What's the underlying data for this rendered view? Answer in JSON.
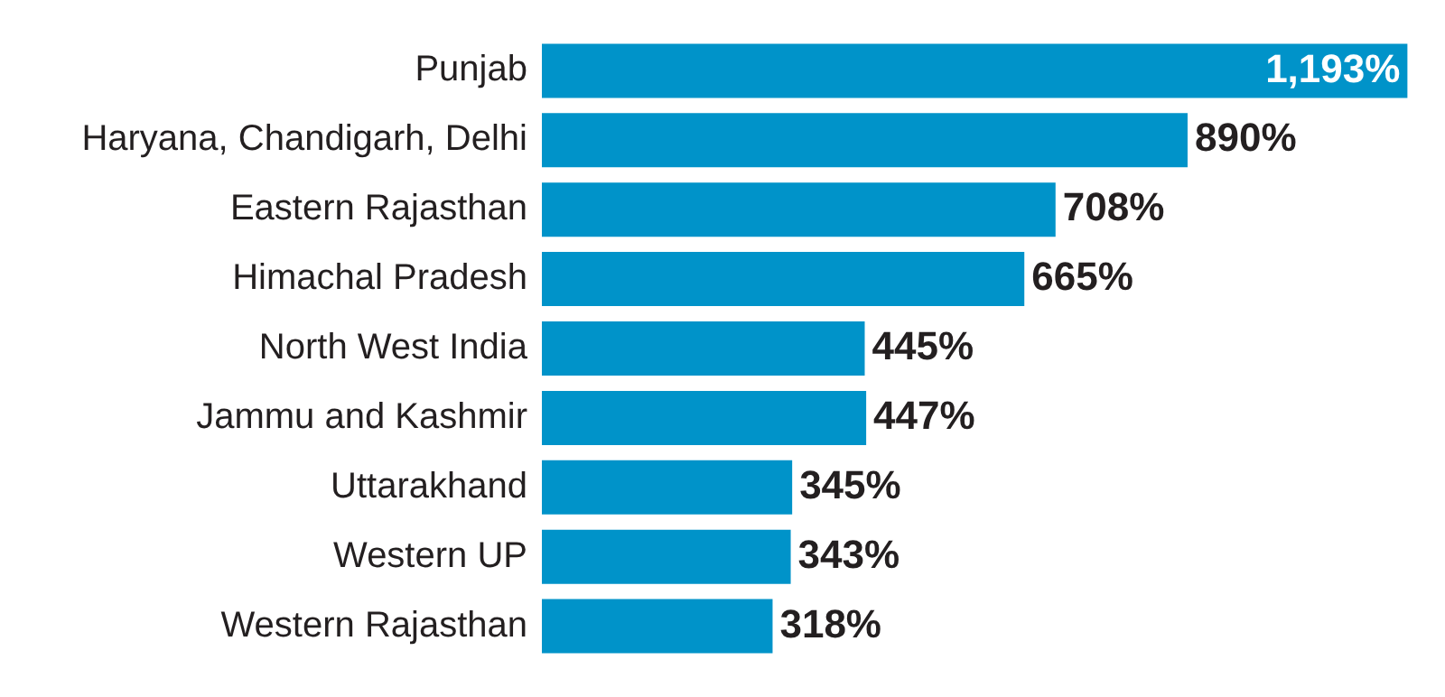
{
  "chart_data": {
    "type": "bar",
    "orientation": "horizontal",
    "categories": [
      "Punjab",
      "Haryana, Chandigarh, Delhi",
      "Eastern Rajasthan",
      "Himachal Pradesh",
      "North West India",
      "Jammu and Kashmir",
      "Uttarakhand",
      "Western UP",
      "Western Rajasthan"
    ],
    "values": [
      1193,
      890,
      708,
      665,
      445,
      447,
      345,
      343,
      318
    ],
    "value_labels": [
      "1,193%",
      "890%",
      "708%",
      "665%",
      "445%",
      "447%",
      "345%",
      "343%",
      "318%"
    ],
    "color": "#0093c9",
    "xlim": [
      0,
      1200
    ],
    "tick_labels": "y",
    "grid": false,
    "legend": false
  }
}
